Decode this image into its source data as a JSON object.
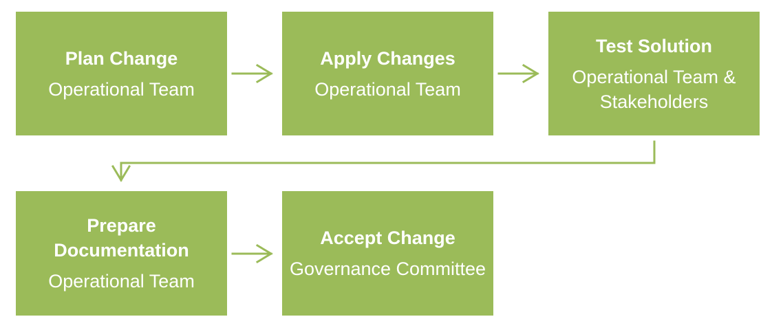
{
  "steps": [
    {
      "title": "Plan Change",
      "owner": "Operational Team"
    },
    {
      "title": "Apply Changes",
      "owner": "Operational Team"
    },
    {
      "title": "Test Solution",
      "owner": "Operational Team & Stakeholders"
    },
    {
      "title": "Prepare Documentation",
      "owner": "Operational Team"
    },
    {
      "title": "Accept Change",
      "owner": "Governance Committee"
    }
  ],
  "colors": {
    "box_fill": "#9bbb59",
    "box_text": "#ffffff",
    "connector": "#9bbb59"
  },
  "flow": [
    {
      "from": "Plan Change",
      "to": "Apply Changes"
    },
    {
      "from": "Apply Changes",
      "to": "Test Solution"
    },
    {
      "from": "Test Solution",
      "to": "Prepare Documentation"
    },
    {
      "from": "Prepare Documentation",
      "to": "Accept Change"
    }
  ]
}
